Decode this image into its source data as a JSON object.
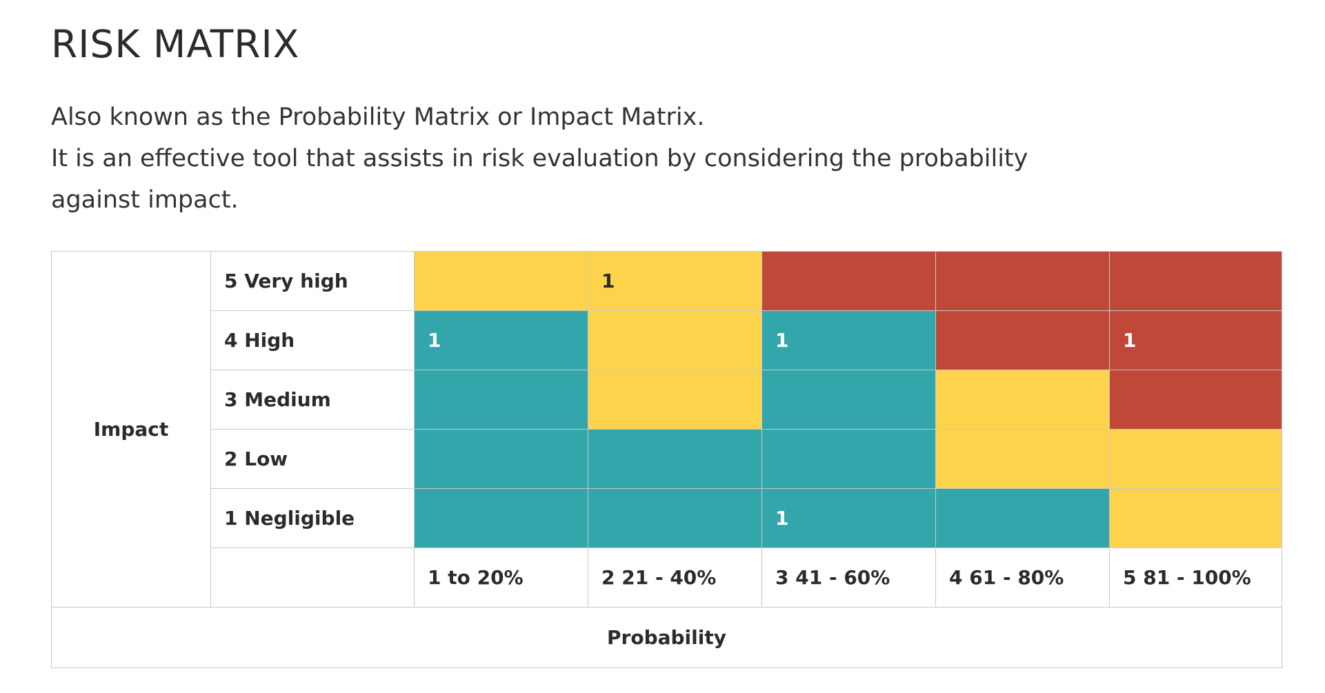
{
  "title": "RISK MATRIX",
  "description": [
    "Also known as the Probability Matrix or Impact Matrix.",
    "It is an effective tool that assists in risk evaluation by considering the probability",
    "against impact."
  ],
  "colors": {
    "yellow": "#fcd34b",
    "teal": "#33a6ab",
    "red": "#bf4838"
  },
  "matrix": {
    "impact_axis_label": "Impact",
    "probability_axis_label": "Probability",
    "impact_levels": [
      "5 Very high",
      "4 High",
      "3 Medium",
      "2 Low",
      "1 Negligible"
    ],
    "probability_levels": [
      "1 to 20%",
      "2 21 - 40%",
      "3 41 - 60%",
      "4 61 - 80%",
      "5 81 - 100%"
    ],
    "rows": [
      {
        "colors": [
          "yellow",
          "yellow",
          "red",
          "red",
          "red"
        ],
        "counts": [
          "",
          "1",
          "",
          "",
          ""
        ]
      },
      {
        "colors": [
          "teal",
          "yellow",
          "teal",
          "red",
          "red"
        ],
        "counts": [
          "1",
          "",
          "1",
          "",
          "1"
        ]
      },
      {
        "colors": [
          "teal",
          "yellow",
          "teal",
          "yellow",
          "red"
        ],
        "counts": [
          "",
          "",
          "",
          "",
          ""
        ]
      },
      {
        "colors": [
          "teal",
          "teal",
          "teal",
          "yellow",
          "yellow"
        ],
        "counts": [
          "",
          "",
          "",
          "",
          ""
        ]
      },
      {
        "colors": [
          "teal",
          "teal",
          "teal",
          "teal",
          "yellow"
        ],
        "counts": [
          "",
          "",
          "1",
          "",
          ""
        ]
      }
    ]
  }
}
